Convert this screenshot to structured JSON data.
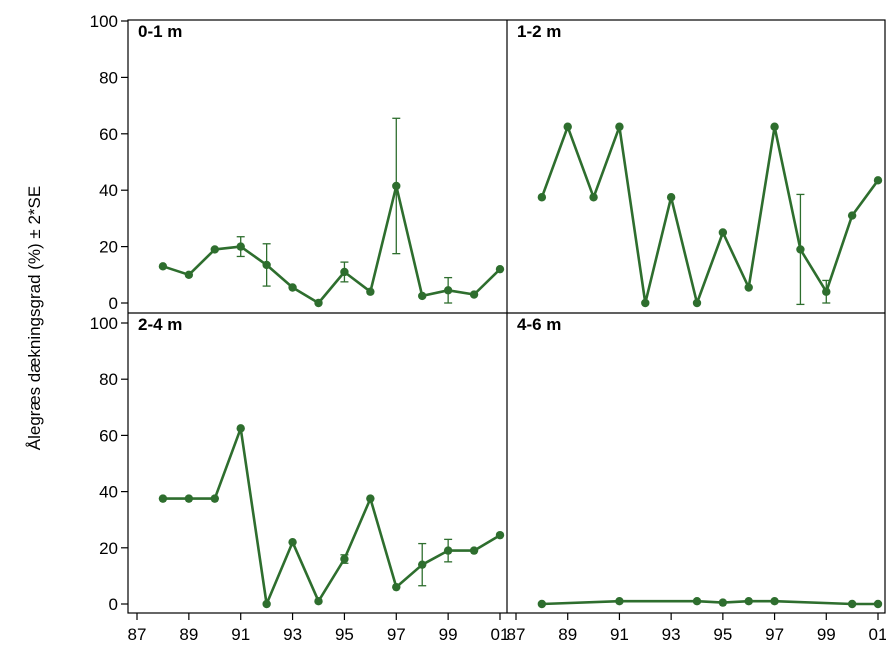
{
  "chart_data": {
    "type": "line",
    "ylabel": "Ålegræs dækningsgrad (%) ± 2*SE",
    "xlabel": "",
    "ylim": [
      0,
      100
    ],
    "xlim": [
      1987,
      2001
    ],
    "y_ticks": [
      0,
      20,
      40,
      60,
      80,
      100
    ],
    "x_ticks": [
      1987,
      1989,
      1991,
      1993,
      1995,
      1997,
      1999,
      2001
    ],
    "x_tick_labels": [
      "87",
      "89",
      "91",
      "93",
      "95",
      "97",
      "99",
      "01"
    ],
    "series_color": "#2e6e2e",
    "grid": false,
    "panels": [
      {
        "title": "0-1 m",
        "x": [
          1988,
          1989,
          1990,
          1991,
          1992,
          1993,
          1994,
          1995,
          1996,
          1997,
          1998,
          1999,
          2000,
          2001
        ],
        "values": [
          13,
          10,
          19,
          20,
          13.5,
          5.5,
          0,
          11,
          4,
          41.5,
          2.5,
          4.5,
          3,
          12
        ],
        "error": [
          0,
          0,
          0,
          3.5,
          7.5,
          0,
          0,
          3.5,
          0,
          24,
          0,
          4.5,
          0,
          0
        ]
      },
      {
        "title": "1-2 m",
        "x": [
          1988,
          1989,
          1990,
          1991,
          1992,
          1993,
          1994,
          1995,
          1996,
          1997,
          1998,
          1999,
          2000,
          2001
        ],
        "values": [
          37.5,
          62.5,
          37.5,
          62.5,
          0,
          37.5,
          0,
          25,
          5.5,
          62.5,
          19,
          4,
          31,
          43.5
        ],
        "error": [
          0,
          0,
          0,
          0,
          0,
          0,
          0,
          0,
          0,
          0,
          19.5,
          4,
          0,
          0
        ]
      },
      {
        "title": "2-4 m",
        "x": [
          1988,
          1989,
          1990,
          1991,
          1992,
          1993,
          1994,
          1995,
          1996,
          1997,
          1998,
          1999,
          2000,
          2001
        ],
        "values": [
          37.5,
          37.5,
          37.5,
          62.5,
          0,
          22,
          1,
          16,
          37.5,
          6,
          14,
          19,
          19,
          24.5
        ],
        "error": [
          0,
          0,
          0,
          0,
          0,
          0,
          0,
          1.5,
          0,
          0,
          7.5,
          4,
          0,
          0
        ]
      },
      {
        "title": "4-6 m",
        "x": [
          1988,
          1991,
          1994,
          1995,
          1996,
          1997,
          2000,
          2001
        ],
        "values": [
          0,
          1,
          1,
          0.5,
          1,
          1,
          0,
          0
        ],
        "error": [
          0,
          0,
          0,
          0,
          0,
          0,
          0,
          0
        ]
      }
    ]
  }
}
